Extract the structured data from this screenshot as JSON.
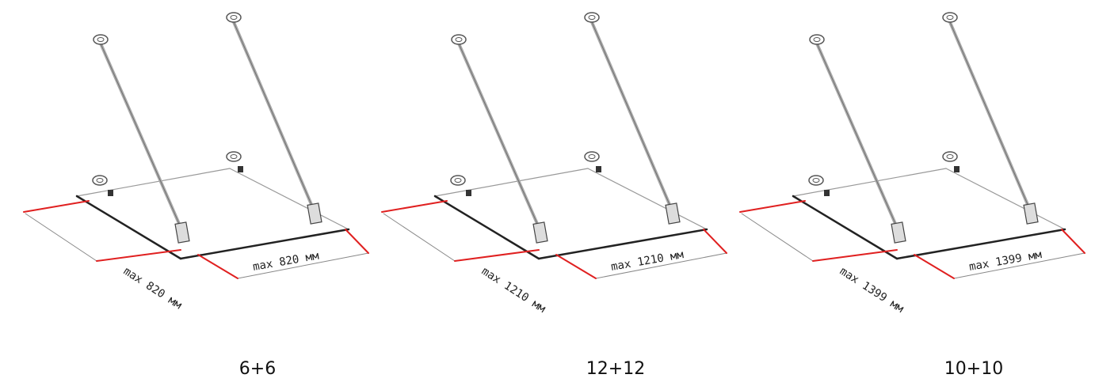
{
  "panels": [
    {
      "width_label": "max 820 мм",
      "depth_label": "max 820 мм",
      "caption": "6+6"
    },
    {
      "width_label": "max 1210 мм",
      "depth_label": "max 1210 мм",
      "caption": "12+12"
    },
    {
      "width_label": "max 1399 мм",
      "depth_label": "max 1399 мм",
      "caption": "10+10"
    }
  ]
}
